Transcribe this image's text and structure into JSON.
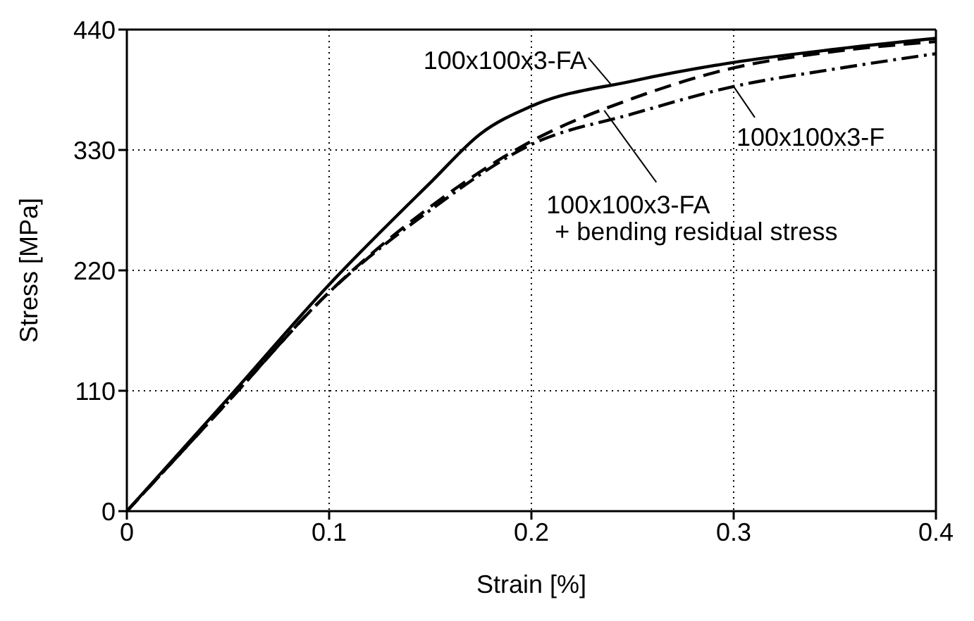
{
  "chart_data": {
    "type": "line",
    "xlabel": "Strain [%]",
    "ylabel": "Stress [MPa]",
    "xlim": [
      0,
      0.4
    ],
    "xticks": [
      0,
      0.1,
      0.2,
      0.3,
      0.4
    ],
    "ylim": [
      0,
      440
    ],
    "yticks": [
      0,
      110,
      220,
      330,
      440
    ],
    "grid": true,
    "marker": "none",
    "series": [
      {
        "name": "100x100x3-FA",
        "color": "#000000",
        "line_style": "solid",
        "x": [
          0,
          0.05,
          0.1,
          0.15,
          0.175,
          0.2,
          0.25,
          0.3,
          0.35,
          0.4
        ],
        "values": [
          0,
          103,
          207,
          300,
          345,
          370,
          393,
          410,
          422,
          432
        ]
      },
      {
        "name": "100x100x3-FA\n+ bending residual stress",
        "color": "#000000",
        "line_style": "dashed",
        "x": [
          0,
          0.05,
          0.1,
          0.15,
          0.2,
          0.25,
          0.3,
          0.35,
          0.4
        ],
        "values": [
          0,
          100,
          200,
          278,
          338,
          377,
          405,
          420,
          429
        ]
      },
      {
        "name": "100x100x3-F",
        "color": "#000000",
        "line_style": "dashdot",
        "x": [
          0,
          0.05,
          0.1,
          0.15,
          0.2,
          0.25,
          0.3,
          0.35,
          0.4
        ],
        "values": [
          0,
          100,
          200,
          275,
          335,
          363,
          388,
          404,
          418
        ]
      }
    ]
  }
}
